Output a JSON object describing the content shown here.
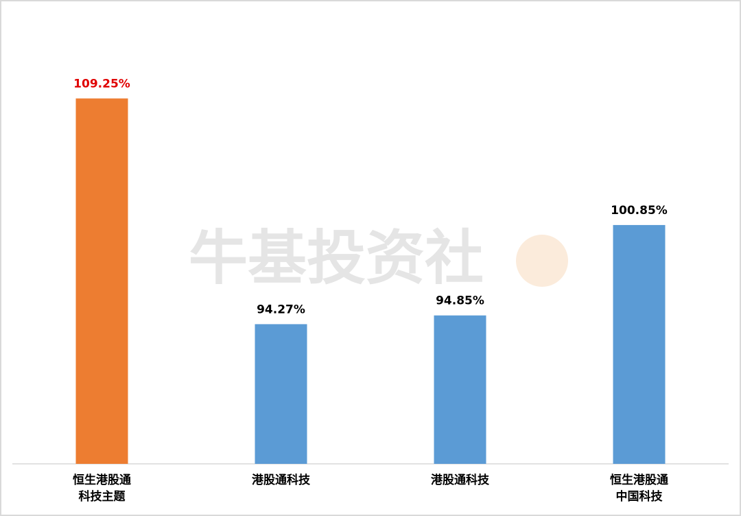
{
  "chart_data": {
    "type": "bar",
    "watermark": "牛基投资社",
    "categories": [
      "恒生港股通\n科技主题",
      "港股通科技",
      "港股通科技",
      "恒生港股通\n中国科技"
    ],
    "values": [
      109.25,
      94.27,
      94.85,
      100.85
    ],
    "value_labels": [
      "109.25%",
      "94.27%",
      "94.85%",
      "100.85%"
    ],
    "colors": [
      "#ed7d31",
      "#5b9bd5",
      "#5b9bd5",
      "#5b9bd5"
    ],
    "value_label_colors": [
      "#e00000",
      "#000000",
      "#000000",
      "#000000"
    ],
    "ylim": [
      85,
      110
    ]
  }
}
